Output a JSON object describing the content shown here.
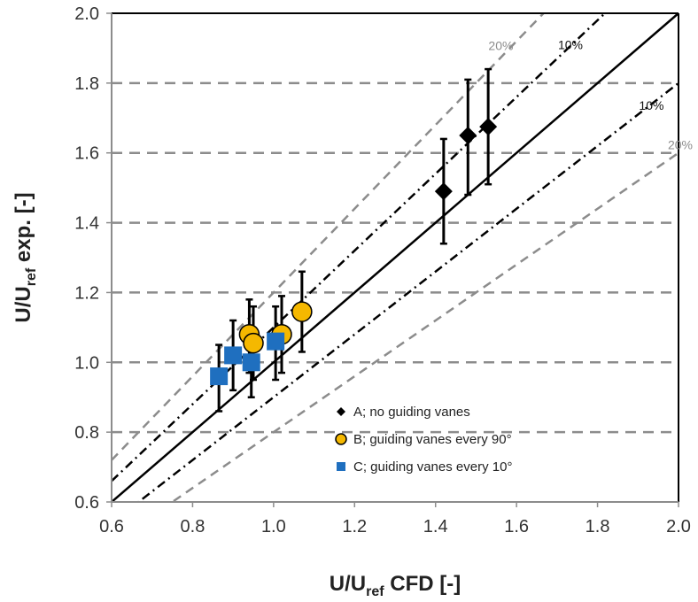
{
  "chart_data": {
    "type": "scatter",
    "xlabel_main": "U/U",
    "xlabel_sub": "ref",
    "xlabel_tail": " CFD [-]",
    "ylabel_main": "U/U",
    "ylabel_sub": "ref",
    "ylabel_tail": " exp. [-]",
    "xlim": [
      0.6,
      2.0
    ],
    "ylim": [
      0.6,
      2.0
    ],
    "x_ticks": [
      "0.6",
      "0.8",
      "1.0",
      "1.2",
      "1.4",
      "1.6",
      "1.8",
      "2.0"
    ],
    "y_ticks": [
      "0.6",
      "0.8",
      "1.0",
      "1.2",
      "1.4",
      "1.6",
      "1.8",
      "2.0"
    ],
    "grid": "horizontal dashed",
    "legend_position": "bottom-right",
    "reference_lines": [
      {
        "label": "",
        "slope": 1.0,
        "style": "solid",
        "color": "#000000"
      },
      {
        "label": "10%",
        "slope": 1.1,
        "style": "dash-dot",
        "color": "#000000"
      },
      {
        "label": "10%",
        "slope": 0.9,
        "style": "dash-dot",
        "color": "#000000"
      },
      {
        "label": "20%",
        "slope": 1.2,
        "style": "dashed",
        "color": "#8c8c8c"
      },
      {
        "label": "20%",
        "slope": 0.8,
        "style": "dashed",
        "color": "#8c8c8c"
      }
    ],
    "series": [
      {
        "name": "A; no guiding vanes",
        "marker": "diamond",
        "color": "#000000",
        "points": [
          {
            "x": 1.42,
            "y": 1.49,
            "err_low": 1.34,
            "err_high": 1.64
          },
          {
            "x": 1.48,
            "y": 1.65,
            "err_low": 1.48,
            "err_high": 1.81
          },
          {
            "x": 1.53,
            "y": 1.675,
            "err_low": 1.51,
            "err_high": 1.84
          }
        ]
      },
      {
        "name": "B; guiding vanes every 90°",
        "marker": "circle",
        "color": "#f5b800",
        "points": [
          {
            "x": 0.94,
            "y": 1.08,
            "err_low": 0.97,
            "err_high": 1.18
          },
          {
            "x": 0.95,
            "y": 1.055,
            "err_low": 0.95,
            "err_high": 1.16
          },
          {
            "x": 1.02,
            "y": 1.08,
            "err_low": 0.97,
            "err_high": 1.19
          },
          {
            "x": 1.07,
            "y": 1.145,
            "err_low": 1.03,
            "err_high": 1.26
          }
        ]
      },
      {
        "name": "C; guiding vanes every 10°",
        "marker": "square",
        "color": "#1f6fbf",
        "points": [
          {
            "x": 0.865,
            "y": 0.96,
            "err_low": 0.86,
            "err_high": 1.05
          },
          {
            "x": 0.9,
            "y": 1.02,
            "err_low": 0.92,
            "err_high": 1.12
          },
          {
            "x": 0.945,
            "y": 1.0,
            "err_low": 0.9,
            "err_high": 1.1
          },
          {
            "x": 1.005,
            "y": 1.06,
            "err_low": 0.95,
            "err_high": 1.16
          }
        ]
      }
    ]
  }
}
